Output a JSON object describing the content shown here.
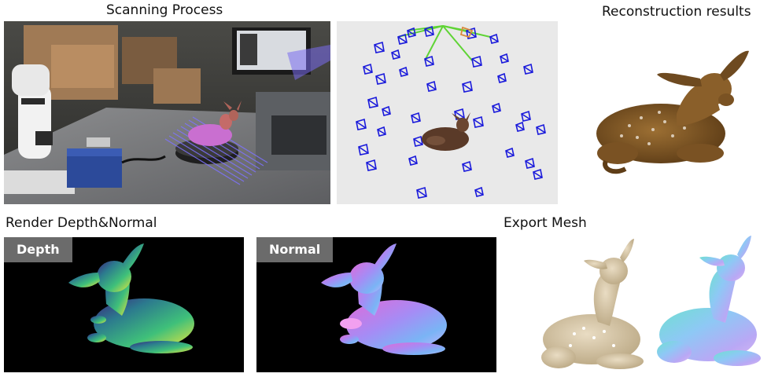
{
  "titles": {
    "scanning": "Scanning Process",
    "reconstruction": "Reconstruction results",
    "render": "Render Depth&Normal",
    "export": "Export Mesh"
  },
  "tags": {
    "depth": "Depth",
    "normal": "Normal"
  }
}
